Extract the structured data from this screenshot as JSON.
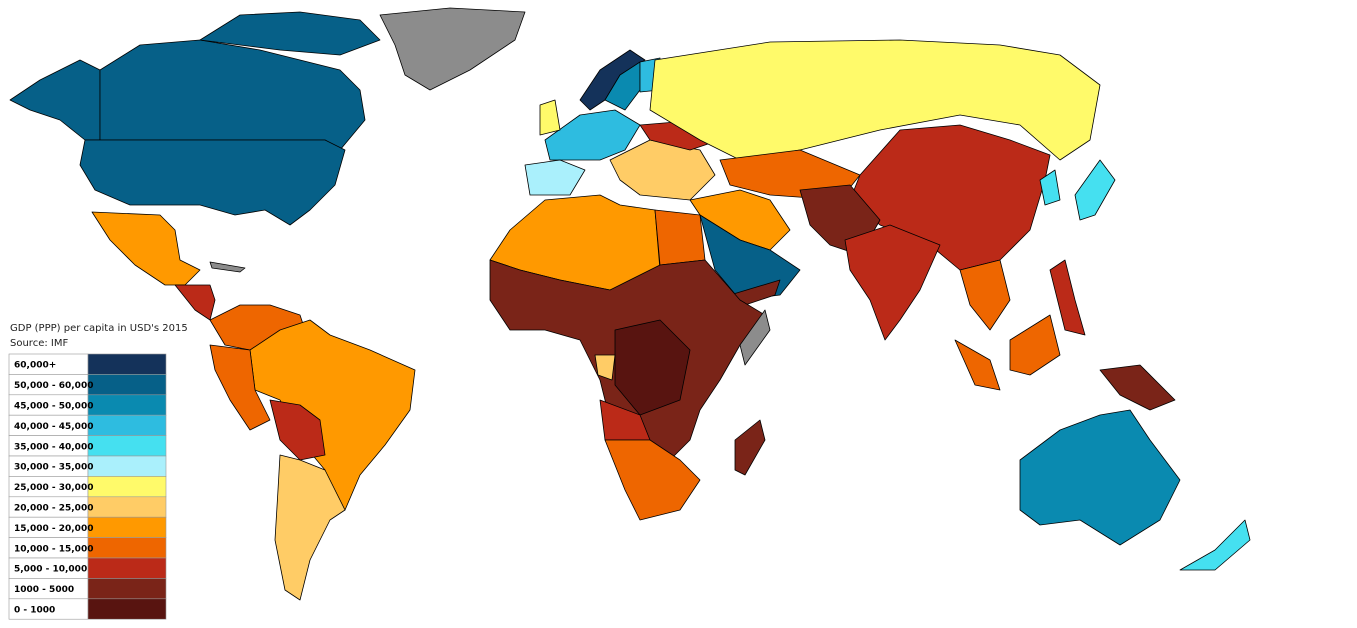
{
  "legend": {
    "title": "GDP (PPP) per capita in USD's 2015",
    "source": "Source: IMF",
    "items": [
      {
        "label": "60,000+",
        "color": "#14325a"
      },
      {
        "label": "50,000 - 60,000",
        "color": "#066088"
      },
      {
        "label": "45,000 - 50,000",
        "color": "#0a8ab0"
      },
      {
        "label": "40,000 - 45,000",
        "color": "#2ebce0"
      },
      {
        "label": "35,000 - 40,000",
        "color": "#45e0f0"
      },
      {
        "label": "30,000 - 35,000",
        "color": "#aaf0fc"
      },
      {
        "label": "25,000 - 30,000",
        "color": "#fffa6a"
      },
      {
        "label": "20,000 - 25,000",
        "color": "#ffcc66"
      },
      {
        "label": "15,000 - 20,000",
        "color": "#ff9900"
      },
      {
        "label": "10,000 - 15,000",
        "color": "#ee6600"
      },
      {
        "label": "5,000 - 10,000",
        "color": "#bb2a18"
      },
      {
        "label": "1000 - 5000",
        "color": "#7a2418"
      },
      {
        "label": "0 - 1000",
        "color": "#581410"
      }
    ]
  }
}
